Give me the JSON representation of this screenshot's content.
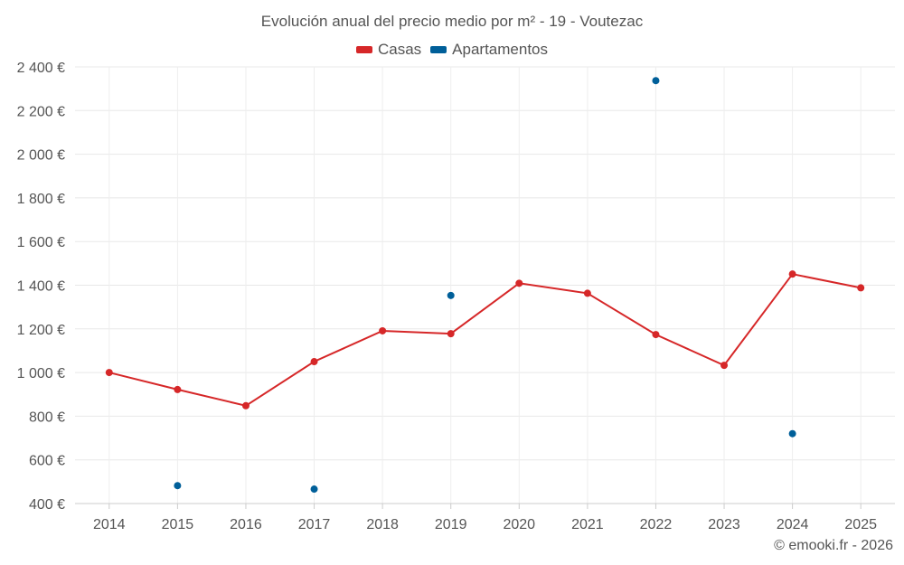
{
  "chart_data": {
    "type": "line",
    "title": "Evolución anual del precio medio por m² - 19 - Voutezac",
    "categories": [
      "2014",
      "2015",
      "2016",
      "2017",
      "2018",
      "2019",
      "2020",
      "2021",
      "2022",
      "2023",
      "2024",
      "2025"
    ],
    "ylim": [
      400,
      2400
    ],
    "yticks": [
      400,
      600,
      800,
      1000,
      1200,
      1400,
      1600,
      1800,
      2000,
      2200,
      2400
    ],
    "ytick_labels": [
      "400 €",
      "600 €",
      "800 €",
      "1 000 €",
      "1 200 €",
      "1 400 €",
      "1 600 €",
      "1 800 €",
      "2 000 €",
      "2 200 €",
      "2 400 €"
    ],
    "series": [
      {
        "name": "Casas",
        "color": "#d62728",
        "mode": "line+markers",
        "values": [
          1000,
          922,
          848,
          1050,
          1191,
          1178,
          1409,
          1363,
          1174,
          1033,
          1451,
          1388
        ]
      },
      {
        "name": "Apartamentos",
        "color": "#005f99",
        "mode": "markers",
        "values": [
          null,
          482,
          null,
          466,
          null,
          1353,
          null,
          null,
          2337,
          null,
          720,
          null
        ]
      }
    ],
    "legend_position": "top-center",
    "grid": true
  },
  "credit": "© emooki.fr - 2026"
}
